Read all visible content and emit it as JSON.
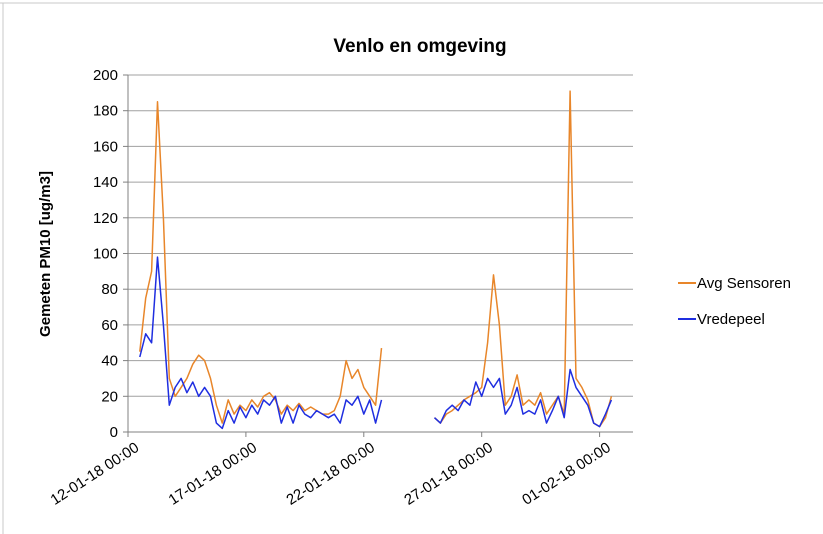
{
  "chart_data": {
    "type": "line",
    "title": "Venlo en omgeving",
    "y_label": "Gemeten PM10  [ug/m3]",
    "x": [
      "12-01-18 12:00",
      "12-01-18 18:00",
      "13-01-18 00:00",
      "13-01-18 06:00",
      "13-01-18 12:00",
      "13-01-18 18:00",
      "14-01-18 00:00",
      "14-01-18 06:00",
      "14-01-18 12:00",
      "14-01-18 18:00",
      "15-01-18 00:00",
      "15-01-18 06:00",
      "15-01-18 12:00",
      "15-01-18 18:00",
      "16-01-18 00:00",
      "16-01-18 06:00",
      "16-01-18 12:00",
      "16-01-18 18:00",
      "17-01-18 00:00",
      "17-01-18 06:00",
      "17-01-18 12:00",
      "17-01-18 18:00",
      "18-01-18 00:00",
      "18-01-18 06:00",
      "18-01-18 12:00",
      "18-01-18 18:00",
      "19-01-18 00:00",
      "19-01-18 06:00",
      "19-01-18 12:00",
      "19-01-18 18:00",
      "20-01-18 00:00",
      "20-01-18 06:00",
      "20-01-18 12:00",
      "20-01-18 18:00",
      "21-01-18 00:00",
      "21-01-18 06:00",
      "21-01-18 12:00",
      "21-01-18 18:00",
      "22-01-18 00:00",
      "22-01-18 06:00",
      "22-01-18 12:00",
      "22-01-18 18:00",
      "23-01-18 00:00",
      "23-01-18 06:00",
      "23-01-18 12:00",
      "23-01-18 18:00",
      "24-01-18 00:00",
      "24-01-18 06:00",
      "24-01-18 12:00",
      "24-01-18 18:00",
      "25-01-18 00:00",
      "25-01-18 06:00",
      "25-01-18 12:00",
      "25-01-18 18:00",
      "26-01-18 00:00",
      "26-01-18 06:00",
      "26-01-18 12:00",
      "26-01-18 18:00",
      "27-01-18 00:00",
      "27-01-18 06:00",
      "27-01-18 12:00",
      "27-01-18 18:00",
      "28-01-18 00:00",
      "28-01-18 06:00",
      "28-01-18 12:00",
      "28-01-18 18:00",
      "29-01-18 00:00",
      "29-01-18 06:00",
      "29-01-18 12:00",
      "29-01-18 18:00",
      "30-01-18 00:00",
      "30-01-18 06:00",
      "30-01-18 12:00",
      "30-01-18 18:00",
      "31-01-18 00:00",
      "31-01-18 06:00",
      "31-01-18 12:00",
      "31-01-18 18:00",
      "01-02-18 00:00",
      "01-02-18 06:00",
      "01-02-18 12:00"
    ],
    "series": [
      {
        "name": "Avg Sensoren",
        "color": "#e8862a",
        "values": [
          45,
          75,
          90,
          185,
          120,
          30,
          20,
          25,
          30,
          38,
          43,
          40,
          30,
          15,
          5,
          18,
          10,
          15,
          12,
          18,
          14,
          20,
          22,
          18,
          10,
          15,
          12,
          16,
          12,
          14,
          12,
          10,
          10,
          12,
          20,
          40,
          30,
          35,
          25,
          20,
          15,
          47,
          null,
          null,
          null,
          null,
          null,
          null,
          null,
          null,
          8,
          5,
          10,
          12,
          15,
          18,
          20,
          22,
          25,
          50,
          88,
          60,
          15,
          20,
          32,
          15,
          18,
          15,
          22,
          10,
          15,
          20,
          10,
          191,
          30,
          25,
          18,
          5,
          3,
          8,
          20
        ]
      },
      {
        "name": "Vredepeel",
        "color": "#1f2ee0",
        "values": [
          42,
          55,
          50,
          98,
          60,
          15,
          25,
          30,
          22,
          28,
          20,
          25,
          20,
          5,
          2,
          12,
          5,
          14,
          8,
          15,
          10,
          18,
          15,
          20,
          5,
          14,
          5,
          15,
          10,
          8,
          12,
          10,
          8,
          10,
          5,
          18,
          15,
          20,
          10,
          18,
          5,
          18,
          null,
          null,
          null,
          null,
          null,
          null,
          null,
          null,
          8,
          5,
          12,
          15,
          12,
          18,
          15,
          28,
          20,
          30,
          25,
          30,
          10,
          15,
          25,
          10,
          12,
          10,
          18,
          5,
          12,
          20,
          8,
          35,
          25,
          20,
          15,
          5,
          3,
          10,
          18
        ]
      }
    ],
    "xlim": [
      "12-01-18 00:00",
      "02-02-18 10:00"
    ],
    "xticks": [
      "12-01-18 00:00",
      "17-01-18 00:00",
      "22-01-18 00:00",
      "27-01-18 00:00",
      "01-02-18 00:00"
    ],
    "ylim": [
      0,
      200
    ],
    "yticks": [
      0,
      20,
      40,
      60,
      80,
      100,
      120,
      140,
      160,
      180,
      200
    ],
    "grid": true,
    "legend": "right"
  }
}
